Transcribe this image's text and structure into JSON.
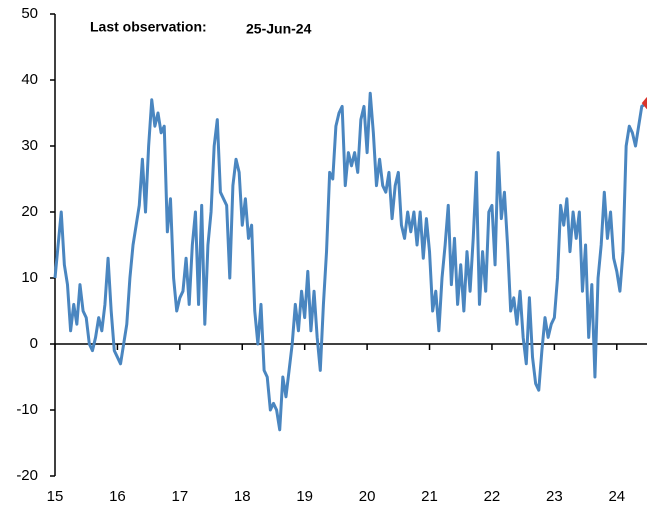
{
  "chart_data": {
    "type": "line",
    "annotation": {
      "label": "Last observation:",
      "date": "25-Jun-24"
    },
    "x": [
      2015.0,
      2015.05,
      2015.1,
      2015.15,
      2015.2,
      2015.25,
      2015.3,
      2015.35,
      2015.4,
      2015.45,
      2015.5,
      2015.55,
      2015.6,
      2015.65,
      2015.7,
      2015.75,
      2015.8,
      2015.85,
      2015.9,
      2015.95,
      2016.0,
      2016.05,
      2016.1,
      2016.15,
      2016.2,
      2016.25,
      2016.3,
      2016.35,
      2016.4,
      2016.45,
      2016.5,
      2016.55,
      2016.6,
      2016.65,
      2016.7,
      2016.75,
      2016.8,
      2016.85,
      2016.9,
      2016.95,
      2017.0,
      2017.05,
      2017.1,
      2017.15,
      2017.2,
      2017.25,
      2017.3,
      2017.35,
      2017.4,
      2017.45,
      2017.5,
      2017.55,
      2017.6,
      2017.65,
      2017.7,
      2017.75,
      2017.8,
      2017.85,
      2017.9,
      2017.95,
      2018.0,
      2018.05,
      2018.1,
      2018.15,
      2018.2,
      2018.25,
      2018.3,
      2018.35,
      2018.4,
      2018.45,
      2018.5,
      2018.55,
      2018.6,
      2018.65,
      2018.7,
      2018.75,
      2018.8,
      2018.85,
      2018.9,
      2018.95,
      2019.0,
      2019.05,
      2019.1,
      2019.15,
      2019.2,
      2019.25,
      2019.3,
      2019.35,
      2019.4,
      2019.45,
      2019.5,
      2019.55,
      2019.6,
      2019.65,
      2019.7,
      2019.75,
      2019.8,
      2019.85,
      2019.9,
      2019.95,
      2020.0,
      2020.05,
      2020.1,
      2020.15,
      2020.2,
      2020.25,
      2020.3,
      2020.35,
      2020.4,
      2020.45,
      2020.5,
      2020.55,
      2020.6,
      2020.65,
      2020.7,
      2020.75,
      2020.8,
      2020.85,
      2020.9,
      2020.95,
      2021.0,
      2021.05,
      2021.1,
      2021.15,
      2021.2,
      2021.25,
      2021.3,
      2021.35,
      2021.4,
      2021.45,
      2021.5,
      2021.55,
      2021.6,
      2021.65,
      2021.7,
      2021.75,
      2021.8,
      2021.85,
      2021.9,
      2021.95,
      2022.0,
      2022.05,
      2022.1,
      2022.15,
      2022.2,
      2022.25,
      2022.3,
      2022.35,
      2022.4,
      2022.45,
      2022.5,
      2022.55,
      2022.6,
      2022.65,
      2022.7,
      2022.75,
      2022.8,
      2022.85,
      2022.9,
      2022.95,
      2023.0,
      2023.05,
      2023.1,
      2023.15,
      2023.2,
      2023.25,
      2023.3,
      2023.35,
      2023.4,
      2023.45,
      2023.5,
      2023.55,
      2023.6,
      2023.65,
      2023.7,
      2023.75,
      2023.8,
      2023.85,
      2023.9,
      2023.95,
      2024.0,
      2024.05,
      2024.1,
      2024.15,
      2024.2,
      2024.25,
      2024.3,
      2024.35,
      2024.4,
      2024.48
    ],
    "series": [
      {
        "color": "#4a86c0",
        "last_marker_color": "#d9342b",
        "values": [
          10,
          15,
          20,
          12,
          9,
          2,
          6,
          3,
          9,
          5,
          4,
          0,
          -1,
          1,
          4,
          2,
          6,
          13,
          5,
          -1,
          -2,
          -3,
          0,
          3,
          10,
          15,
          18,
          21,
          28,
          20,
          30,
          37,
          33,
          35,
          32,
          33,
          17,
          22,
          10,
          5,
          7,
          8,
          13,
          6,
          15,
          20,
          6,
          21,
          3,
          15,
          20,
          30,
          34,
          23,
          22,
          21,
          10,
          24,
          28,
          26,
          18,
          22,
          16,
          18,
          5,
          0,
          6,
          -4,
          -5,
          -10,
          -9,
          -10,
          -13,
          -5,
          -8,
          -4,
          0,
          6,
          2,
          8,
          4,
          11,
          2,
          8,
          1,
          -4,
          6,
          14,
          26,
          25,
          33,
          35,
          36,
          24,
          29,
          27,
          29,
          26,
          34,
          36,
          29,
          38,
          32,
          24,
          28,
          24,
          23,
          26,
          19,
          24,
          26,
          18,
          16,
          20,
          17,
          20,
          15,
          20,
          13,
          19,
          14,
          5,
          8,
          2,
          10,
          15,
          21,
          9,
          16,
          6,
          12,
          5,
          14,
          8,
          16,
          26,
          6,
          14,
          8,
          20,
          21,
          12,
          29,
          19,
          23,
          15,
          5,
          7,
          3,
          8,
          1,
          -3,
          7,
          -2,
          -6,
          -7,
          -1,
          4,
          1,
          3,
          4,
          10,
          21,
          18,
          22,
          14,
          20,
          16,
          20,
          8,
          15,
          1,
          9,
          -5,
          10,
          15,
          23,
          16,
          20,
          13,
          11,
          8,
          14,
          30,
          33,
          32,
          30,
          33,
          36,
          36.5
        ]
      }
    ],
    "xlim": [
      2015,
      2024.5
    ],
    "xticks": [
      {
        "value": 2015,
        "label": "15"
      },
      {
        "value": 2016,
        "label": "16"
      },
      {
        "value": 2017,
        "label": "17"
      },
      {
        "value": 2018,
        "label": "18"
      },
      {
        "value": 2019,
        "label": "19"
      },
      {
        "value": 2020,
        "label": "20"
      },
      {
        "value": 2021,
        "label": "21"
      },
      {
        "value": 2022,
        "label": "22"
      },
      {
        "value": 2023,
        "label": "23"
      },
      {
        "value": 2024,
        "label": "24"
      }
    ],
    "ylim": [
      -20,
      50
    ],
    "yticks": [
      -20,
      -10,
      0,
      10,
      20,
      30,
      40,
      50
    ]
  }
}
